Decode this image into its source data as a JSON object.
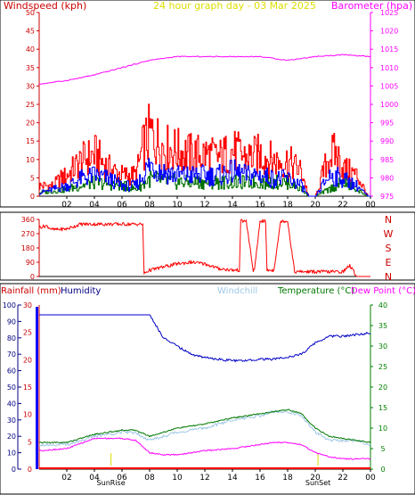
{
  "chart_data": [
    {
      "type": "line",
      "panel": "wind-pressure",
      "title": "24 hour graph day - 03 Mar 2025",
      "left_label": "Windspeed (kph)",
      "right_label": "Barometer (hpa)",
      "x_ticks": [
        "02",
        "04",
        "06",
        "08",
        "10",
        "12",
        "14",
        "16",
        "18",
        "20",
        "22",
        "00"
      ],
      "y_left_ticks": [
        "0",
        "5",
        "10",
        "15",
        "20",
        "25",
        "30",
        "35",
        "40",
        "45",
        "50"
      ],
      "y_left_range": [
        0,
        50
      ],
      "y_right_ticks": [
        "975",
        "980",
        "985",
        "990",
        "995",
        "1000",
        "1005",
        "1010",
        "1015",
        "1020",
        "1025"
      ],
      "y_right_range": [
        975,
        1025
      ],
      "series": [
        {
          "name": "Barometer",
          "axis": "right",
          "color": "#ff00ff",
          "x": [
            0,
            2,
            4,
            6,
            8,
            10,
            12,
            14,
            16,
            18,
            20,
            22,
            24
          ],
          "y": [
            1005.5,
            1006.5,
            1008,
            1010,
            1012,
            1013,
            1013,
            1013,
            1013,
            1012,
            1013,
            1013.5,
            1013
          ]
        },
        {
          "name": "Wind gust",
          "axis": "left",
          "color": "#ff0000",
          "x": [
            0,
            1,
            1.5,
            2,
            3,
            4,
            5,
            6,
            7,
            7.5,
            8,
            9,
            10,
            11,
            12,
            13,
            14,
            15,
            16,
            17,
            18,
            19,
            19.5,
            20,
            21,
            21.5,
            22,
            23,
            23.8,
            24
          ],
          "y": [
            3,
            3,
            5,
            6,
            10,
            12,
            8,
            6,
            6,
            14,
            18,
            14,
            13,
            12,
            12,
            11,
            13,
            11,
            12,
            10,
            10,
            7,
            0,
            0,
            12,
            12,
            8,
            6,
            0,
            0
          ]
        },
        {
          "name": "Wind speed",
          "axis": "left",
          "color": "#0000ff",
          "x": [
            0,
            1,
            2,
            3,
            4,
            5,
            6,
            7,
            7.5,
            8,
            9,
            10,
            11,
            12,
            13,
            14,
            15,
            16,
            17,
            18,
            19,
            19.5,
            20,
            21,
            22,
            23,
            23.8,
            24
          ],
          "y": [
            1,
            2,
            3,
            5,
            6,
            5,
            3,
            3,
            6,
            9,
            7,
            6,
            6,
            6,
            6,
            7,
            6,
            6,
            5,
            5,
            3,
            0,
            0,
            6,
            5,
            3,
            0,
            0
          ]
        },
        {
          "name": "Wind average",
          "axis": "left",
          "color": "#007000",
          "x": [
            0,
            2,
            4,
            6,
            7,
            8,
            10,
            12,
            14,
            16,
            18,
            19,
            19.5,
            20,
            22,
            23.8,
            24
          ],
          "y": [
            1,
            2,
            4,
            3,
            2,
            5,
            4,
            4,
            4,
            4,
            4,
            2,
            0,
            0,
            4,
            0,
            0
          ]
        }
      ]
    },
    {
      "type": "line",
      "panel": "wind-direction",
      "x_ticks": [
        "02",
        "04",
        "06",
        "08",
        "10",
        "12",
        "14",
        "16",
        "18",
        "20",
        "22",
        "00"
      ],
      "y_ticks": [
        "0",
        "90",
        "180",
        "270",
        "360"
      ],
      "y_range": [
        0,
        360
      ],
      "compass_labels": [
        "N",
        "W",
        "S",
        "E",
        "N"
      ],
      "series": [
        {
          "name": "Wind direction",
          "color": "#ff0000",
          "x": [
            0,
            0.5,
            1,
            2,
            3,
            4,
            5,
            6,
            7,
            7.5,
            7.6,
            8,
            9,
            10,
            11,
            12,
            13,
            14,
            14.5,
            14.6,
            15,
            15.5,
            15.6,
            16,
            16.4,
            16.5,
            17,
            17.5,
            17.6,
            18,
            18.5,
            18.6,
            19,
            20,
            21,
            22,
            22.5,
            23,
            23.8,
            24
          ],
          "y": [
            310,
            320,
            295,
            300,
            330,
            330,
            330,
            330,
            330,
            330,
            20,
            40,
            60,
            80,
            90,
            80,
            50,
            40,
            40,
            350,
            350,
            40,
            40,
            350,
            350,
            40,
            40,
            350,
            350,
            350,
            30,
            30,
            30,
            30,
            30,
            30,
            70,
            0,
            0,
            0
          ]
        }
      ]
    },
    {
      "type": "line",
      "panel": "temperature-humidity",
      "labels": {
        "rainfall": "Rainfall (mm)",
        "humidity": "Humidity",
        "windchill": "Windchill",
        "temperature": "Temperature (°C)",
        "dewpoint": "Dew Point (°C)"
      },
      "x_ticks": [
        "02",
        "04",
        "06",
        "08",
        "10",
        "12",
        "14",
        "16",
        "18",
        "20",
        "22",
        "00"
      ],
      "y_humidity_ticks": [
        "0",
        "10",
        "20",
        "30",
        "40",
        "50",
        "60",
        "70",
        "80",
        "90",
        "100"
      ],
      "y_humidity_range": [
        0,
        100
      ],
      "y_rain_ticks": [
        "0",
        "5",
        "10",
        "15",
        "20",
        "25",
        "30"
      ],
      "y_rain_range": [
        0,
        30
      ],
      "y_temp_ticks": [
        "0",
        "5",
        "10",
        "15",
        "20",
        "25",
        "30",
        "35",
        "40"
      ],
      "y_temp_range": [
        0,
        40
      ],
      "sunrise_label": "SunRise",
      "sunset_label": "SunSet",
      "sunrise_hour": 5.2,
      "sunset_hour": 20.2,
      "series": [
        {
          "name": "Humidity",
          "axis": "humidity",
          "color": "#0000c8",
          "x": [
            0,
            2,
            4,
            6,
            8,
            9,
            10,
            11,
            12,
            13,
            14,
            15,
            16,
            17,
            18,
            19,
            20,
            21,
            22,
            23,
            24
          ],
          "y": [
            94,
            94,
            94,
            94,
            94,
            80,
            75,
            70,
            68,
            67,
            66,
            66,
            67,
            67,
            68,
            70,
            77,
            81,
            81,
            82,
            83
          ]
        },
        {
          "name": "Windchill",
          "axis": "temp",
          "color": "#a0c8e6",
          "x": [
            0,
            2,
            4,
            6,
            7,
            8,
            9,
            10,
            12,
            14,
            16,
            17,
            18,
            19,
            20,
            21,
            22,
            23,
            24
          ],
          "y": [
            6,
            6,
            8,
            9,
            9,
            7,
            8,
            9,
            10,
            12,
            13,
            14,
            14,
            13,
            9,
            7,
            7,
            7,
            6
          ]
        },
        {
          "name": "Temperature",
          "axis": "temp",
          "color": "#007800",
          "x": [
            0,
            2,
            4,
            6,
            7,
            8,
            9,
            10,
            12,
            14,
            16,
            17,
            18,
            19,
            20,
            21,
            22,
            23,
            24
          ],
          "y": [
            6.5,
            6.5,
            8.5,
            9.5,
            9.5,
            8,
            9,
            10,
            11,
            12.5,
            13.5,
            14,
            14.5,
            13.5,
            10,
            8,
            7.5,
            7,
            6.5
          ]
        },
        {
          "name": "Dew Point",
          "axis": "temp",
          "color": "#ff00ff",
          "x": [
            0,
            2,
            4,
            6,
            7,
            8,
            9,
            10,
            12,
            14,
            16,
            17,
            18,
            19,
            20,
            21,
            22,
            23,
            24
          ],
          "y": [
            4.5,
            5,
            7.5,
            7.5,
            7,
            4,
            3.5,
            3.5,
            4.5,
            5,
            6,
            6.5,
            6.5,
            6,
            4,
            3,
            2.5,
            2.5,
            2.5
          ]
        },
        {
          "name": "Rainfall",
          "axis": "rain",
          "color": "#ff0000",
          "x": [
            0,
            24
          ],
          "y": [
            0,
            0
          ]
        }
      ]
    }
  ],
  "colors": {
    "wind_label": "#cc0000",
    "title": "#dddd00",
    "baro_label": "#ff00ff",
    "humidity_label": "#000080",
    "windchill_label": "#a0c8e6",
    "temp_label": "#007800",
    "dew_label": "#ff00ff",
    "rain_axis": "#0000ff",
    "temp_axis": "#008000",
    "dir_axis": "#cc0000",
    "sun_marker": "#dddd00"
  }
}
